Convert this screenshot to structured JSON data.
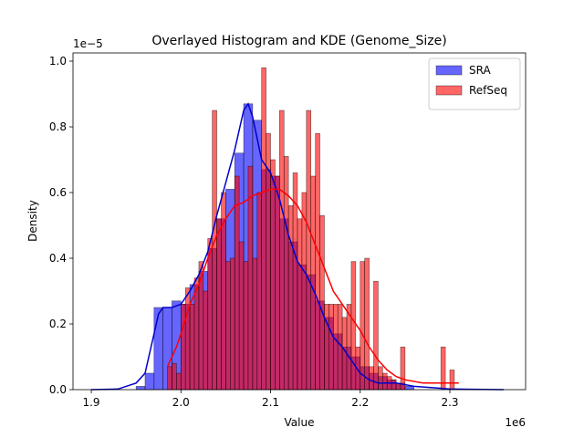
{
  "chart_data": {
    "type": "histogram",
    "title": "Overlayed Histogram and KDE (Genome_Size)",
    "xlabel": "Value",
    "ylabel": "Density",
    "x_offset_label": "1e6",
    "y_offset_label": "1e−5",
    "xlim": [
      1.8796,
      2.3845
    ],
    "ylim": [
      0,
      1.025
    ],
    "xticks": [
      1.9,
      {
        "value": 2,
        "label": "2.0"
      },
      2.1,
      2.2,
      2.3
    ],
    "yticks": [
      {
        "value": 0,
        "label": "0.0"
      },
      0.2,
      0.4,
      0.6,
      0.8,
      {
        "value": 1,
        "label": "1.0"
      }
    ],
    "legend": "upper right",
    "series": [
      {
        "name": "SRA",
        "color": "#0000ff",
        "line_color": "#0000cc",
        "bins": [
          1.95,
          1.96,
          1.97,
          1.98,
          1.99,
          2.0,
          2.01,
          2.02,
          2.03,
          2.04,
          2.05,
          2.06,
          2.07,
          2.08,
          2.09,
          2.1,
          2.11,
          2.12,
          2.13,
          2.14,
          2.15,
          2.16,
          2.17,
          2.18,
          2.19,
          2.2,
          2.21,
          2.22,
          2.23,
          2.24,
          2.25,
          2.26
        ],
        "values": [
          0.01,
          0.05,
          0.25,
          0.25,
          0.27,
          0.26,
          0.32,
          0.36,
          0.43,
          0.52,
          0.61,
          0.72,
          0.87,
          0.82,
          0.67,
          0.65,
          0.52,
          0.45,
          0.38,
          0.35,
          0.27,
          0.22,
          0.17,
          0.13,
          0.1,
          0.07,
          0.05,
          0.04,
          0.03,
          0.02,
          0.01
        ],
        "kde_x": [
          1.9,
          1.93,
          1.95,
          1.96,
          1.97,
          1.975,
          1.98,
          1.99,
          2.0,
          2.01,
          2.02,
          2.03,
          2.04,
          2.05,
          2.06,
          2.07,
          2.075,
          2.08,
          2.09,
          2.1,
          2.11,
          2.12,
          2.13,
          2.14,
          2.15,
          2.16,
          2.17,
          2.18,
          2.19,
          2.2,
          2.21,
          2.22,
          2.24,
          2.26,
          2.3,
          2.36
        ],
        "kde_y": [
          0,
          0.002,
          0.02,
          0.05,
          0.17,
          0.23,
          0.25,
          0.25,
          0.26,
          0.3,
          0.35,
          0.42,
          0.53,
          0.63,
          0.73,
          0.85,
          0.87,
          0.83,
          0.7,
          0.66,
          0.58,
          0.47,
          0.39,
          0.35,
          0.29,
          0.22,
          0.16,
          0.13,
          0.09,
          0.05,
          0.03,
          0.02,
          0.02,
          0.01,
          0.002,
          0
        ]
      },
      {
        "name": "RefSeq",
        "color": "#ff0000",
        "line_color": "#ff0000",
        "bins": [
          1.985,
          1.99,
          1.995,
          2.0,
          2.005,
          2.01,
          2.015,
          2.02,
          2.025,
          2.03,
          2.035,
          2.04,
          2.045,
          2.05,
          2.055,
          2.06,
          2.065,
          2.07,
          2.075,
          2.08,
          2.085,
          2.09,
          2.095,
          2.1,
          2.105,
          2.11,
          2.115,
          2.12,
          2.125,
          2.13,
          2.135,
          2.14,
          2.145,
          2.15,
          2.155,
          2.16,
          2.165,
          2.17,
          2.175,
          2.18,
          2.185,
          2.19,
          2.195,
          2.2,
          2.205,
          2.21,
          2.215,
          2.22,
          2.225,
          2.23,
          2.235,
          2.24,
          2.245,
          2.25,
          2.255,
          2.26,
          2.265,
          2.27,
          2.275,
          2.28,
          2.285,
          2.29,
          2.295,
          2.3,
          2.305
        ],
        "values": [
          0.07,
          0.08,
          0.05,
          0.26,
          0.31,
          0.26,
          0.34,
          0.39,
          0.3,
          0.46,
          0.85,
          0.52,
          0.6,
          0.39,
          0.4,
          0.65,
          0.45,
          0.39,
          0.68,
          0.4,
          0.6,
          0.98,
          0.78,
          0.7,
          0.65,
          0.85,
          0.71,
          0.56,
          0.66,
          0.52,
          0.6,
          0.85,
          0.65,
          0.78,
          0.53,
          0.26,
          0.26,
          0.26,
          0.26,
          0.22,
          0.26,
          0.39,
          0.13,
          0.39,
          0.4,
          0.07,
          0.33,
          0.07,
          0.05,
          0.04,
          0.03,
          0.02,
          0.13,
          0,
          0,
          0,
          0,
          0,
          0,
          0,
          0,
          0.13,
          0,
          0.06
        ],
        "kde_x": [
          1.985,
          1.995,
          2.0,
          2.01,
          2.02,
          2.03,
          2.04,
          2.05,
          2.06,
          2.07,
          2.08,
          2.09,
          2.1,
          2.11,
          2.12,
          2.13,
          2.14,
          2.15,
          2.16,
          2.17,
          2.18,
          2.19,
          2.2,
          2.21,
          2.22,
          2.23,
          2.24,
          2.25,
          2.27,
          2.29,
          2.31
        ],
        "kde_y": [
          0.07,
          0.13,
          0.17,
          0.26,
          0.32,
          0.4,
          0.47,
          0.52,
          0.56,
          0.57,
          0.59,
          0.6,
          0.61,
          0.61,
          0.59,
          0.56,
          0.51,
          0.44,
          0.37,
          0.3,
          0.26,
          0.22,
          0.18,
          0.13,
          0.09,
          0.06,
          0.04,
          0.03,
          0.02,
          0.02,
          0.02
        ]
      }
    ]
  }
}
